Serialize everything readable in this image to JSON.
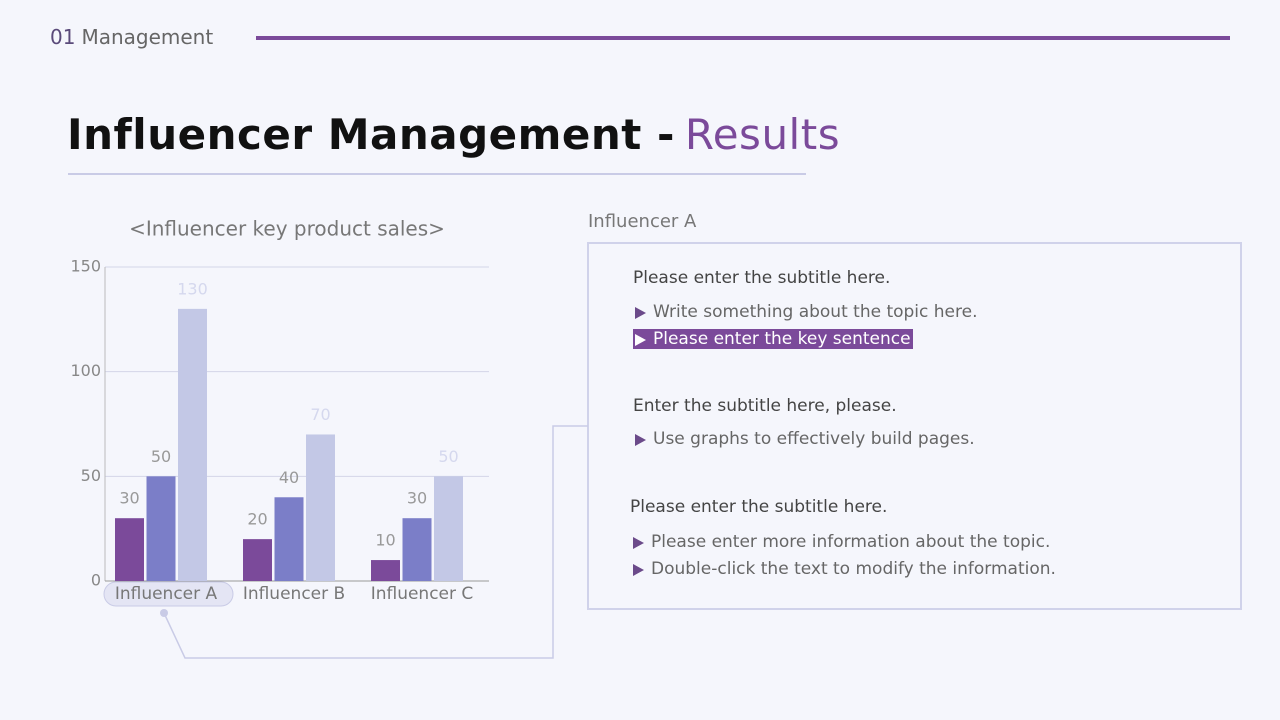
{
  "header": {
    "number": "01",
    "section": "Management"
  },
  "title": {
    "main": "Influencer Management -",
    "accent": "Results"
  },
  "chart_data": {
    "type": "bar",
    "title": "<Influencer key product sales>",
    "categories": [
      "Influencer A",
      "Influencer B",
      "Influencer C"
    ],
    "series": [
      {
        "color": "#7b4a9a",
        "values": [
          30,
          20,
          10
        ]
      },
      {
        "color": "#7b7ec8",
        "values": [
          50,
          40,
          30
        ]
      },
      {
        "color": "#c3c8e6",
        "values": [
          130,
          70,
          50
        ]
      }
    ],
    "ylim": [
      0,
      150
    ],
    "yticks": [
      0,
      50,
      100,
      150
    ],
    "grid": true
  },
  "panel": {
    "label": "Influencer A",
    "sections": [
      {
        "subtitle": "Please enter the subtitle here.",
        "items": [
          "Write something about the topic here.",
          "Please enter the key sentence"
        ]
      },
      {
        "subtitle": "Enter the subtitle here, please.",
        "items": [
          "Use graphs to effectively build pages."
        ]
      },
      {
        "subtitle": "Please enter the subtitle here.",
        "items": [
          "Please enter more information about the topic.",
          "Double-click the text to modify the information."
        ]
      }
    ]
  }
}
